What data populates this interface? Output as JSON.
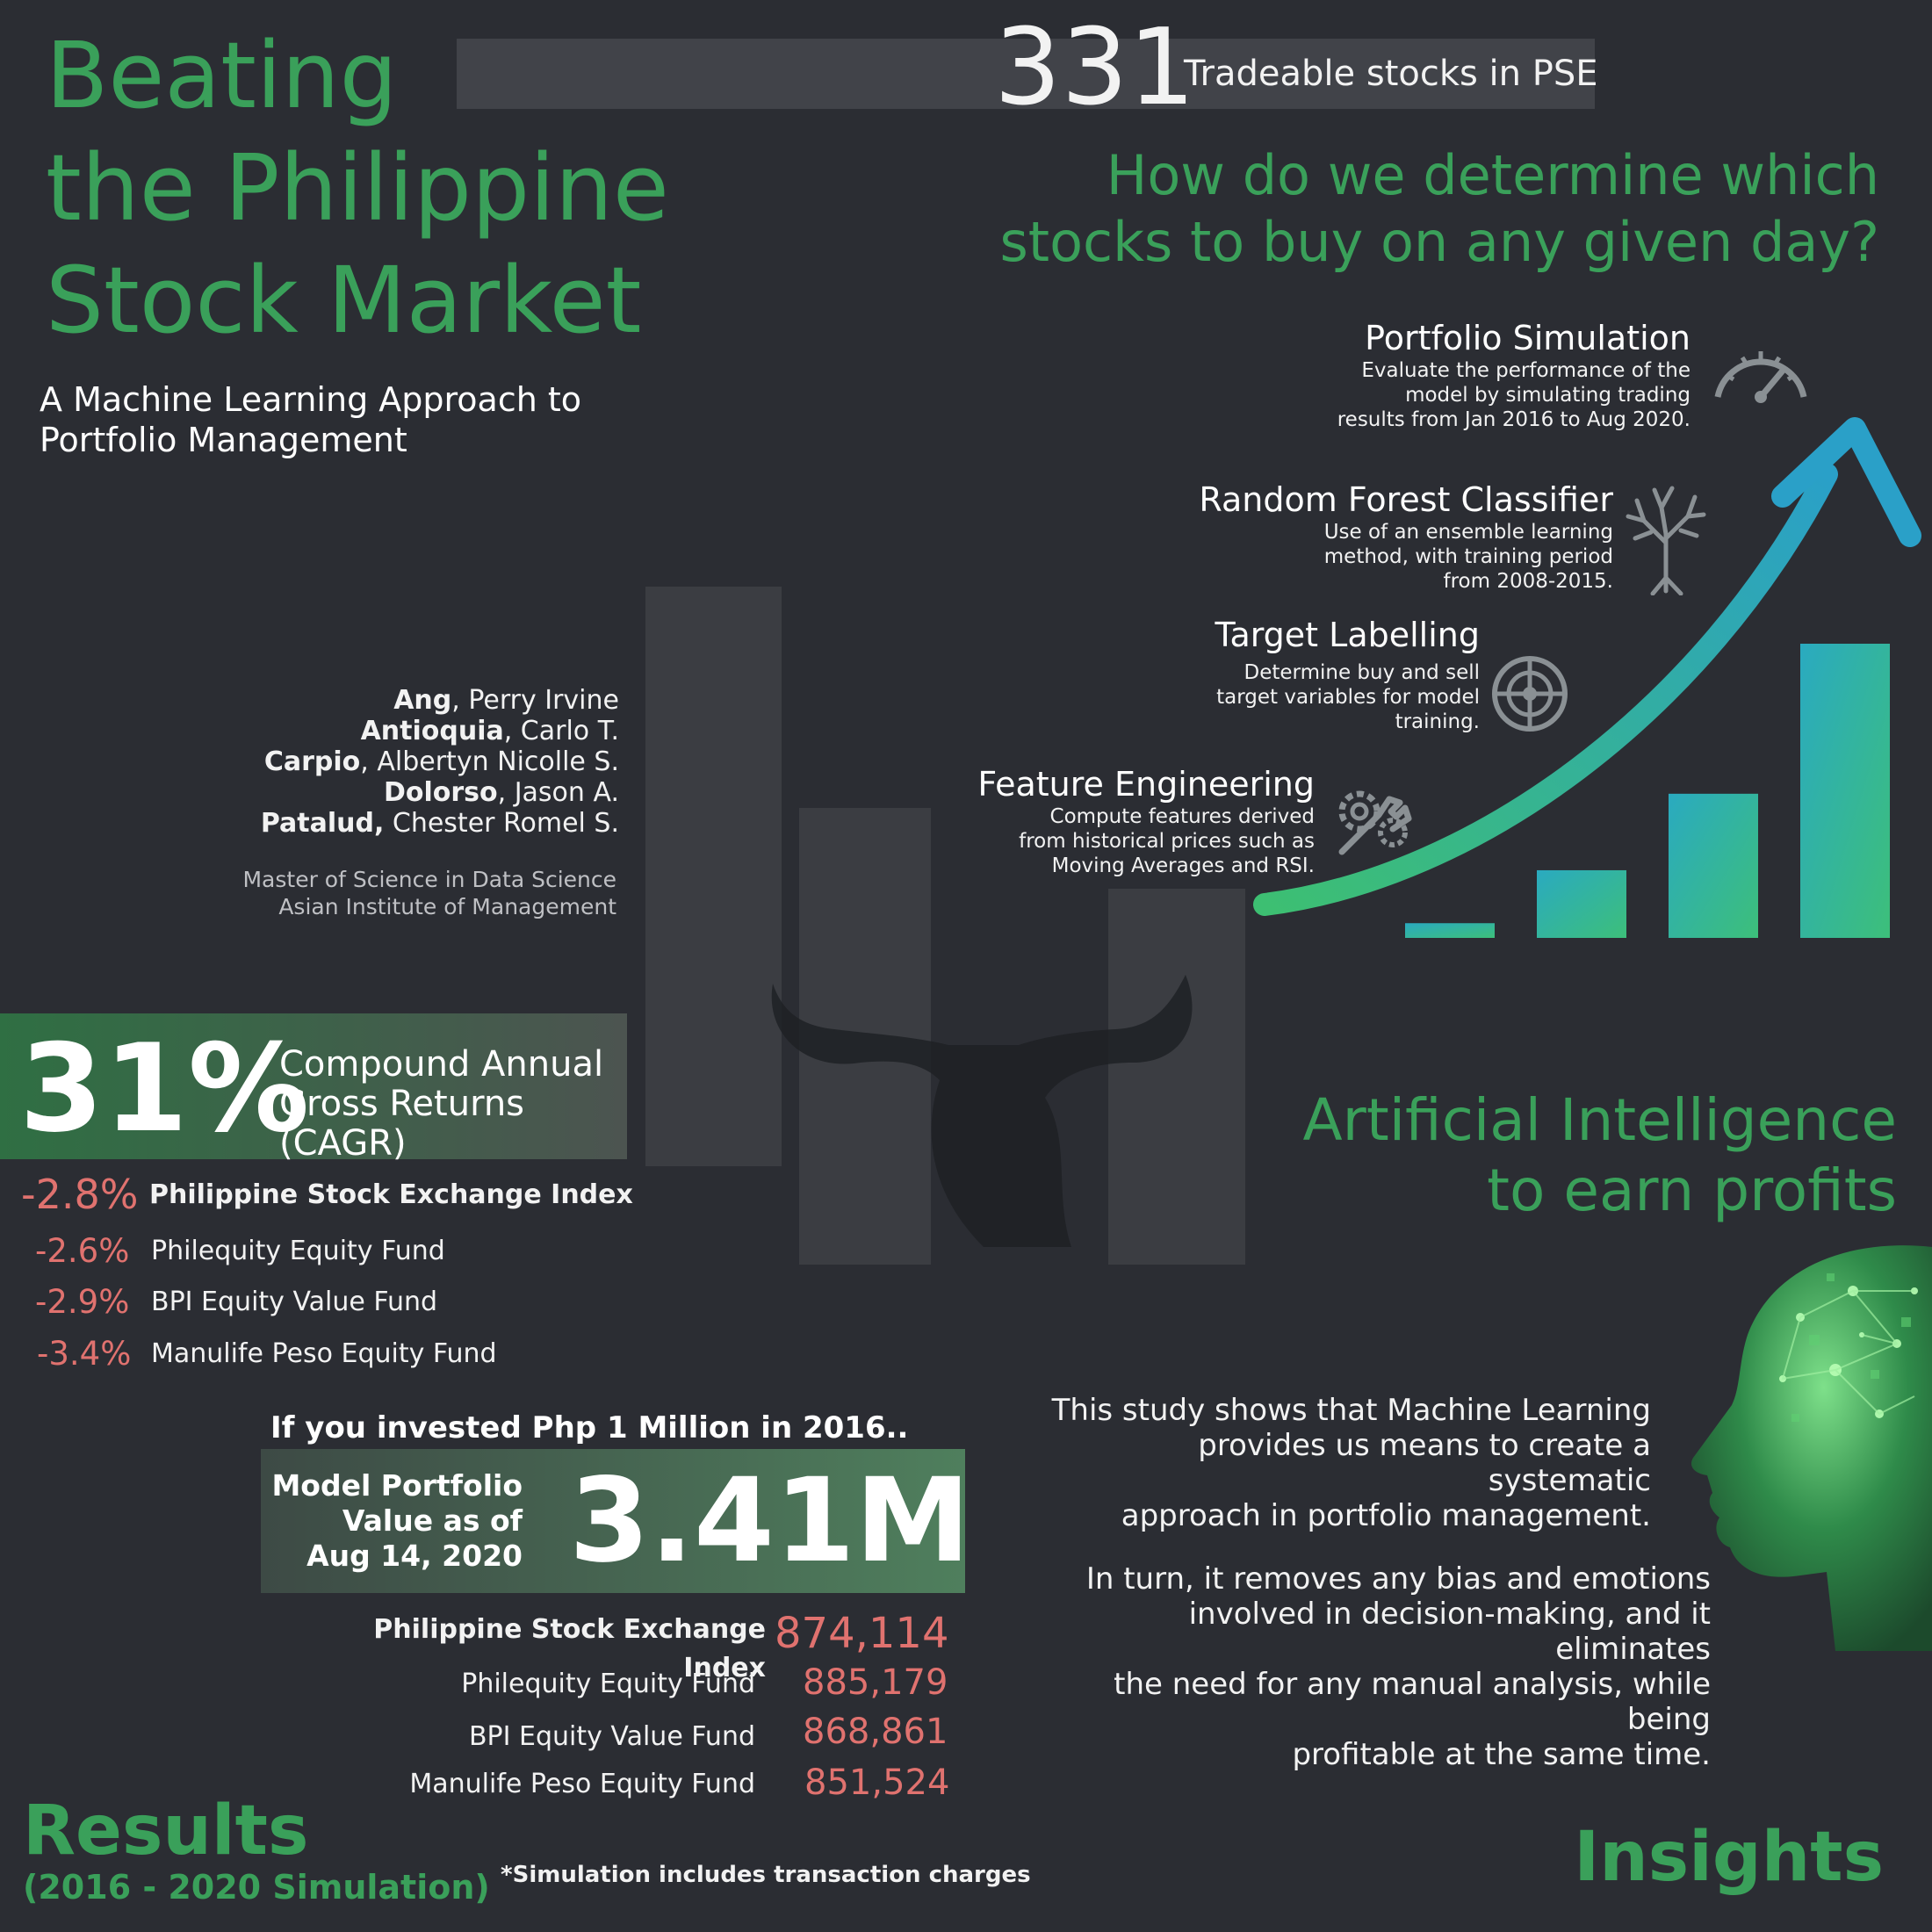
{
  "title_lines": [
    "Beating",
    "the Philippine",
    "Stock Market"
  ],
  "subtitle_lines": [
    "A Machine Learning Approach to",
    "Portfolio Management"
  ],
  "tradeable": {
    "count": "331",
    "label": "Tradeable stocks in PSE"
  },
  "question_lines": [
    "How do we determine which",
    "stocks to buy on any given day?"
  ],
  "steps": [
    {
      "title": "Portfolio Simulation",
      "desc": [
        "Evaluate the performance of the",
        "model by simulating trading",
        "results from Jan 2016 to Aug 2020."
      ],
      "icon": "speedometer-icon"
    },
    {
      "title": "Random Forest Classifier",
      "desc": [
        "Use of an ensemble learning",
        "method, with training period",
        "from 2008-2015."
      ],
      "icon": "tree-icon"
    },
    {
      "title": "Target Labelling",
      "desc": [
        "Determine buy and sell",
        "target variables for model",
        "training."
      ],
      "icon": "target-icon"
    },
    {
      "title": "Feature Engineering",
      "desc": [
        "Compute features derived",
        "from historical prices such as",
        "Moving Averages and RSI."
      ],
      "icon": "gear-wrench-icon"
    }
  ],
  "authors": [
    {
      "last": "Ang",
      "first": ", Perry Irvine"
    },
    {
      "last": "Antioquia",
      "first": ", Carlo T."
    },
    {
      "last": "Carpio",
      "first": ", Albertyn Nicolle S."
    },
    {
      "last": "Dolorso",
      "first": ", Jason A."
    },
    {
      "last": "Patalud,",
      "first": " Chester Romel S."
    }
  ],
  "school_lines": [
    "Master of Science in Data Science",
    "Asian Institute of Management"
  ],
  "cagr": {
    "value": "31%",
    "label_lines": [
      "Compound Annual",
      "Gross Returns (CAGR)"
    ]
  },
  "comparisons": [
    {
      "value": "-2.8%",
      "label": "Philippine Stock Exchange Index"
    },
    {
      "value": "-2.6%",
      "label": "Philequity Equity Fund"
    },
    {
      "value": "-2.9%",
      "label": "BPI Equity Value Fund"
    },
    {
      "value": "-3.4%",
      "label": "Manulife Peso Equity Fund"
    }
  ],
  "investment": {
    "heading": "If you invested Php 1 Million in 2016..",
    "label_lines": [
      "Model Portfolio",
      "Value as of",
      "Aug 14, 2020"
    ],
    "value": "3.41M",
    "funds": [
      {
        "label": "Philippine Stock Exchange Index",
        "value": "874,114"
      },
      {
        "label": "Philequity Equity Fund",
        "value": "885,179"
      },
      {
        "label": "BPI Equity Value Fund",
        "value": "868,861"
      },
      {
        "label": "Manulife Peso Equity Fund",
        "value": "851,524"
      }
    ]
  },
  "results": {
    "title": "Results",
    "subtitle": "(2016 - 2020 Simulation)",
    "note": "*Simulation includes transaction charges"
  },
  "ai_heading_lines": [
    "Artificial Intelligence",
    "to earn profits"
  ],
  "insight_paragraphs": [
    [
      "This study shows that Machine Learning",
      "provides us means to create a systematic",
      "approach in portfolio management."
    ],
    [
      "In turn, it removes any bias and emotions",
      "involved in decision-making, and it eliminates",
      "the need for any manual analysis, while being",
      "profitable at the same time."
    ]
  ],
  "insights_title": "Insights",
  "chart_bars": [
    0.05,
    0.23,
    0.49,
    1.0
  ],
  "colors": {
    "green": "#3aa05a",
    "red": "#e0726f",
    "background": "#2b2d33",
    "teal": "#2aaac0"
  }
}
